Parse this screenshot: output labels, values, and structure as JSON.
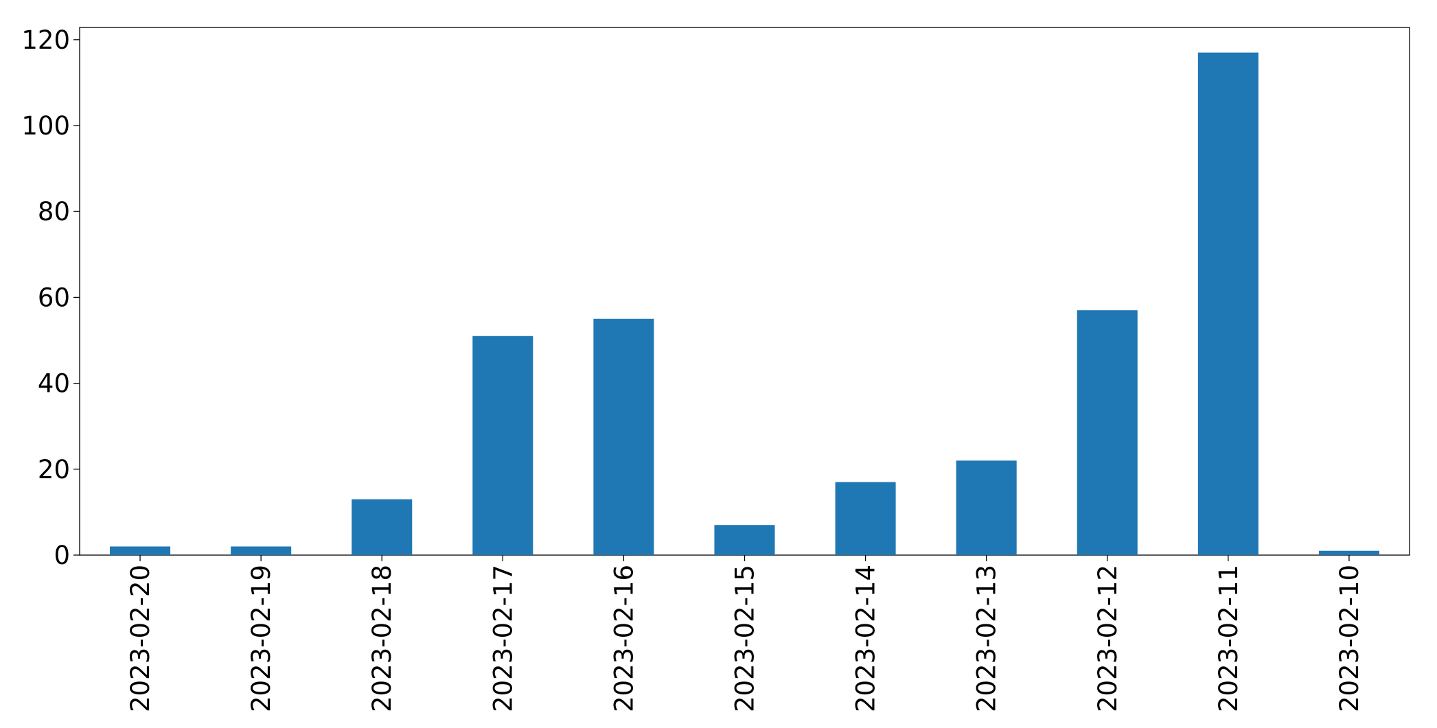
{
  "chart_data": {
    "type": "bar",
    "categories": [
      "2023-02-20",
      "2023-02-19",
      "2023-02-18",
      "2023-02-17",
      "2023-02-16",
      "2023-02-15",
      "2023-02-14",
      "2023-02-13",
      "2023-02-12",
      "2023-02-11",
      "2023-02-10"
    ],
    "values": [
      2,
      2,
      13,
      51,
      55,
      7,
      17,
      22,
      57,
      117,
      1
    ],
    "color": "#1f77b4",
    "ylim": [
      0,
      122.85
    ],
    "yticks": [
      0,
      20,
      40,
      60,
      80,
      100,
      120
    ],
    "grid": false
  }
}
